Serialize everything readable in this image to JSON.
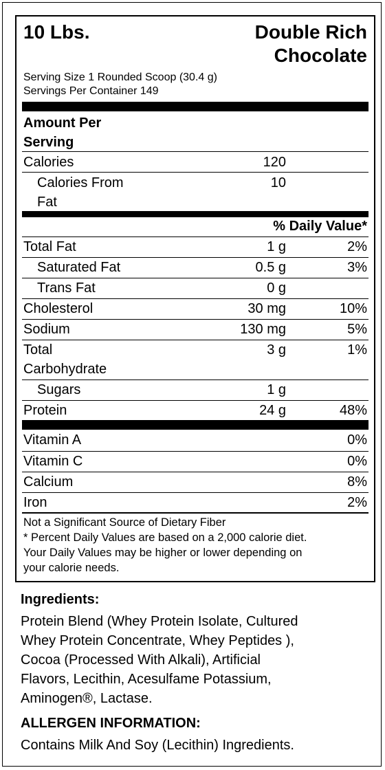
{
  "header": {
    "size": "10 Lbs.",
    "flavor_line1": "Double Rich",
    "flavor_line2": "Chocolate"
  },
  "serving": {
    "size": "Serving Size 1 Rounded Scoop (30.4 g)",
    "per_container": "Servings Per Container 149"
  },
  "amount_per_serving_line1": "Amount Per",
  "amount_per_serving_line2": "Serving",
  "calories": {
    "label": "Calories",
    "value": "120",
    "from_fat_label_line1": "Calories From",
    "from_fat_label_line2": "Fat",
    "from_fat_value": "10"
  },
  "dv_header": "% Daily Value*",
  "nutrients": [
    {
      "label": "Total Fat",
      "amount": "1 g",
      "dv": "2%"
    },
    {
      "label": "Saturated Fat",
      "amount": "0.5 g",
      "dv": "3%"
    },
    {
      "label": "Trans Fat",
      "amount": "0 g",
      "dv": ""
    },
    {
      "label": "Cholesterol",
      "amount": "30 mg",
      "dv": "10%"
    },
    {
      "label": "Sodium",
      "amount": "130 mg",
      "dv": "5%"
    },
    {
      "label_line1": "Total",
      "label_line2": "Carbohydrate",
      "amount": "3 g",
      "dv": "1%"
    },
    {
      "label": "Sugars",
      "amount": "1 g",
      "dv": ""
    },
    {
      "label": "Protein",
      "amount": "24 g",
      "dv": "48%"
    }
  ],
  "vitamins": [
    {
      "label": "Vitamin A",
      "dv": "0%"
    },
    {
      "label": "Vitamin C",
      "dv": "0%"
    },
    {
      "label": "Calcium",
      "dv": "8%"
    },
    {
      "label": "Iron",
      "dv": "2%"
    }
  ],
  "footnotes": {
    "line1": "Not a Significant Source of Dietary Fiber",
    "line2": "* Percent Daily Values are based on a 2,000 calorie diet.",
    "line3": "Your Daily Values may be higher or lower depending on",
    "line4": "your calorie needs."
  },
  "ingredients": {
    "title": "Ingredients:",
    "line1": "Protein Blend (Whey Protein Isolate, Cultured",
    "line2": "Whey Protein Concentrate, Whey Peptides ),",
    "line3": "Cocoa (Processed With Alkali), Artificial",
    "line4": "Flavors, Lecithin, Acesulfame Potassium,",
    "line5": "Aminogen®, Lactase."
  },
  "allergen": {
    "title": "ALLERGEN INFORMATION:",
    "text": "Contains Milk And Soy (Lecithin) Ingredients."
  }
}
